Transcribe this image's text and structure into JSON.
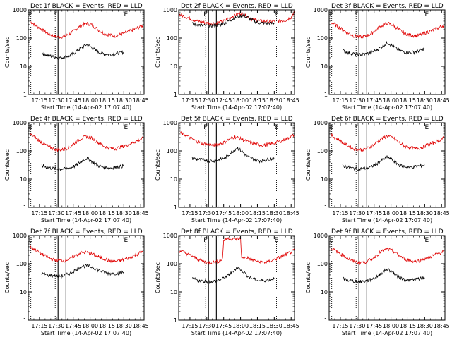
{
  "figure": {
    "ylabel": "Counts/sec",
    "xlabel": "Start Time (14-Apr-02 17:07:40)",
    "y_scale": "log",
    "ylim": [
      1,
      1000
    ],
    "y_ticks": [
      "1",
      "10",
      "100",
      "1000"
    ],
    "x_ticks": [
      "17:15",
      "17:30",
      "17:45",
      "18:00",
      "18:15",
      "18:30",
      "18:45"
    ],
    "x_ticks_min": [
      15,
      30,
      45,
      60,
      75,
      90,
      105
    ],
    "xlim_min": [
      5,
      108
    ],
    "legend_text": "BLACK = Events, RED = LLD",
    "colors": {
      "events": "#000000",
      "lld": "#e00000",
      "axes": "#000000"
    }
  },
  "chart_data": [
    {
      "type": "line",
      "title": "Det 1f BLACK = Events, RED = LLD",
      "detector": "Det 1f",
      "markers": [
        {
          "label": "E",
          "x": 7.3,
          "style": "dotted"
        },
        {
          "label": "F",
          "x": 29,
          "style": "dotted"
        },
        {
          "label": "",
          "x": 31.5,
          "style": "solid"
        },
        {
          "label": "",
          "x": 38.5,
          "style": "solid"
        },
        {
          "label": "E",
          "x": 92,
          "style": "dotted"
        }
      ],
      "series": [
        {
          "name": "RED = LLD",
          "color": "#e00000",
          "x": [
            7,
            12,
            17,
            22,
            27,
            32,
            37,
            42,
            47,
            52,
            57,
            62,
            67,
            72,
            77,
            82,
            87,
            92,
            97,
            102,
            107
          ],
          "y": [
            380,
            280,
            200,
            150,
            120,
            110,
            115,
            140,
            200,
            280,
            340,
            290,
            200,
            150,
            130,
            120,
            135,
            160,
            190,
            230,
            280
          ]
        },
        {
          "name": "BLACK = Events",
          "color": "#000000",
          "x": [
            17,
            22,
            27,
            32,
            37,
            42,
            47,
            52,
            57,
            62,
            67,
            72,
            77,
            82,
            87,
            90
          ],
          "y": [
            30,
            25,
            22,
            20,
            21,
            24,
            32,
            45,
            60,
            45,
            32,
            28,
            26,
            28,
            30,
            32
          ]
        }
      ]
    },
    {
      "type": "line",
      "title": "Det 2f BLACK = Events, RED = LLD",
      "detector": "Det 2f",
      "markers": [
        {
          "label": "F",
          "x": 29,
          "style": "dotted"
        },
        {
          "label": "",
          "x": 31.5,
          "style": "solid"
        },
        {
          "label": "",
          "x": 38.5,
          "style": "solid"
        },
        {
          "label": "E",
          "x": 92,
          "style": "dotted"
        }
      ],
      "series": [
        {
          "name": "RED = LLD",
          "color": "#e00000",
          "x": [
            5,
            10,
            15,
            20,
            25,
            30,
            35,
            40,
            45,
            50,
            55,
            60,
            65,
            70,
            75,
            80,
            85,
            90,
            95,
            100,
            105,
            108
          ],
          "y": [
            700,
            600,
            500,
            420,
            380,
            340,
            330,
            350,
            400,
            520,
            650,
            780,
            620,
            480,
            420,
            400,
            390,
            400,
            410,
            430,
            550,
            900
          ]
        },
        {
          "name": "BLACK = Events",
          "color": "#000000",
          "x": [
            17,
            22,
            27,
            32,
            37,
            42,
            47,
            52,
            57,
            62,
            67,
            72,
            77,
            82,
            87,
            90
          ],
          "y": [
            320,
            300,
            280,
            270,
            280,
            300,
            360,
            460,
            560,
            660,
            520,
            400,
            350,
            330,
            330,
            340
          ]
        }
      ]
    },
    {
      "type": "line",
      "title": "Det 3f BLACK = Events, RED = LLD",
      "detector": "Det 3f",
      "markers": [
        {
          "label": "E",
          "x": 7.3,
          "style": "dotted"
        },
        {
          "label": "F",
          "x": 29,
          "style": "dotted"
        },
        {
          "label": "",
          "x": 31.5,
          "style": "solid"
        },
        {
          "label": "",
          "x": 38.5,
          "style": "solid"
        },
        {
          "label": "E",
          "x": 92,
          "style": "dotted"
        }
      ],
      "series": [
        {
          "name": "RED = LLD",
          "color": "#e00000",
          "x": [
            7,
            12,
            17,
            22,
            27,
            32,
            37,
            42,
            47,
            52,
            57,
            62,
            67,
            72,
            77,
            82,
            87,
            92,
            97,
            102,
            107
          ],
          "y": [
            360,
            270,
            200,
            150,
            120,
            110,
            115,
            140,
            200,
            280,
            340,
            290,
            200,
            150,
            130,
            120,
            135,
            160,
            190,
            230,
            290
          ]
        },
        {
          "name": "BLACK = Events",
          "color": "#000000",
          "x": [
            17,
            22,
            27,
            32,
            37,
            42,
            47,
            52,
            57,
            62,
            67,
            72,
            77,
            82,
            87,
            90
          ],
          "y": [
            36,
            30,
            28,
            26,
            27,
            30,
            38,
            50,
            70,
            50,
            38,
            32,
            30,
            33,
            38,
            42
          ]
        }
      ]
    },
    {
      "type": "line",
      "title": "Det 4f BLACK = Events, RED = LLD",
      "detector": "Det 4f",
      "markers": [
        {
          "label": "E",
          "x": 7.3,
          "style": "dotted"
        },
        {
          "label": "F",
          "x": 29,
          "style": "dotted"
        },
        {
          "label": "",
          "x": 31.5,
          "style": "solid"
        },
        {
          "label": "",
          "x": 38.5,
          "style": "solid"
        },
        {
          "label": "E",
          "x": 92,
          "style": "dotted"
        }
      ],
      "series": [
        {
          "name": "RED = LLD",
          "color": "#e00000",
          "x": [
            7,
            12,
            17,
            22,
            27,
            32,
            37,
            42,
            47,
            52,
            57,
            62,
            67,
            72,
            77,
            82,
            87,
            92,
            97,
            102,
            107
          ],
          "y": [
            380,
            280,
            200,
            150,
            120,
            110,
            115,
            140,
            200,
            280,
            330,
            280,
            200,
            150,
            130,
            120,
            135,
            160,
            190,
            230,
            280
          ]
        },
        {
          "name": "BLACK = Events",
          "color": "#000000",
          "x": [
            17,
            22,
            27,
            32,
            37,
            42,
            47,
            52,
            57,
            62,
            67,
            72,
            77,
            82,
            87,
            90
          ],
          "y": [
            30,
            26,
            24,
            23,
            23,
            25,
            30,
            42,
            55,
            42,
            30,
            27,
            25,
            26,
            28,
            30
          ]
        }
      ]
    },
    {
      "type": "line",
      "title": "Det 5f BLACK = Events, RED = LLD",
      "detector": "Det 5f",
      "markers": [
        {
          "label": "F",
          "x": 29,
          "style": "dotted"
        },
        {
          "label": "",
          "x": 31.5,
          "style": "solid"
        },
        {
          "label": "",
          "x": 38.5,
          "style": "solid"
        },
        {
          "label": "E",
          "x": 92,
          "style": "dotted"
        }
      ],
      "series": [
        {
          "name": "RED = LLD",
          "color": "#e00000",
          "x": [
            5,
            10,
            15,
            20,
            25,
            30,
            35,
            40,
            45,
            50,
            55,
            60,
            65,
            70,
            75,
            80,
            85,
            90,
            95,
            100,
            105,
            108
          ],
          "y": [
            450,
            380,
            300,
            230,
            190,
            170,
            160,
            170,
            200,
            260,
            320,
            270,
            220,
            190,
            170,
            160,
            170,
            190,
            220,
            260,
            330,
            380
          ]
        },
        {
          "name": "BLACK = Events",
          "color": "#000000",
          "x": [
            17,
            22,
            27,
            32,
            37,
            42,
            47,
            52,
            57,
            62,
            67,
            72,
            77,
            82,
            87,
            90
          ],
          "y": [
            55,
            50,
            48,
            45,
            45,
            50,
            60,
            90,
            130,
            90,
            60,
            50,
            45,
            48,
            52,
            55
          ]
        }
      ]
    },
    {
      "type": "line",
      "title": "Det 6f BLACK = Events, RED = LLD",
      "detector": "Det 6f",
      "markers": [
        {
          "label": "E",
          "x": 7.3,
          "style": "dotted"
        },
        {
          "label": "F",
          "x": 29,
          "style": "dotted"
        },
        {
          "label": "",
          "x": 31.5,
          "style": "solid"
        },
        {
          "label": "",
          "x": 38.5,
          "style": "solid"
        },
        {
          "label": "E",
          "x": 92,
          "style": "dotted"
        }
      ],
      "series": [
        {
          "name": "RED = LLD",
          "color": "#e00000",
          "x": [
            7,
            12,
            17,
            22,
            27,
            32,
            37,
            42,
            47,
            52,
            57,
            62,
            67,
            72,
            77,
            82,
            87,
            92,
            97,
            102,
            107
          ],
          "y": [
            360,
            270,
            200,
            150,
            120,
            110,
            115,
            140,
            200,
            280,
            340,
            290,
            200,
            150,
            130,
            120,
            135,
            160,
            190,
            230,
            290
          ]
        },
        {
          "name": "BLACK = Events",
          "color": "#000000",
          "x": [
            17,
            22,
            27,
            32,
            37,
            42,
            47,
            52,
            57,
            62,
            67,
            72,
            77,
            82,
            87,
            90
          ],
          "y": [
            30,
            26,
            24,
            23,
            24,
            27,
            34,
            48,
            60,
            45,
            32,
            28,
            26,
            28,
            30,
            32
          ]
        }
      ]
    },
    {
      "type": "line",
      "title": "Det 7f BLACK = Events, RED = LLD",
      "detector": "Det 7f",
      "markers": [
        {
          "label": "E",
          "x": 7.3,
          "style": "dotted"
        },
        {
          "label": "F",
          "x": 29,
          "style": "dotted"
        },
        {
          "label": "",
          "x": 31.5,
          "style": "solid"
        },
        {
          "label": "",
          "x": 38.5,
          "style": "solid"
        },
        {
          "label": "E",
          "x": 92,
          "style": "dotted"
        }
      ],
      "series": [
        {
          "name": "RED = LLD",
          "color": "#e00000",
          "x": [
            7,
            12,
            17,
            22,
            27,
            32,
            37,
            42,
            47,
            52,
            57,
            62,
            67,
            72,
            77,
            82,
            87,
            92,
            97,
            102,
            107
          ],
          "y": [
            400,
            300,
            220,
            170,
            140,
            130,
            130,
            150,
            200,
            250,
            250,
            220,
            180,
            150,
            130,
            120,
            130,
            150,
            180,
            220,
            280
          ]
        },
        {
          "name": "BLACK = Events",
          "color": "#000000",
          "x": [
            17,
            22,
            27,
            32,
            37,
            42,
            47,
            52,
            57,
            62,
            67,
            72,
            77,
            82,
            87,
            90
          ],
          "y": [
            45,
            40,
            38,
            36,
            38,
            45,
            60,
            80,
            85,
            75,
            60,
            50,
            45,
            45,
            48,
            50
          ]
        }
      ]
    },
    {
      "type": "line",
      "title": "Det 8f BLACK = Events, RED = LLD",
      "detector": "Det 8f",
      "markers": [
        {
          "label": "F",
          "x": 29,
          "style": "dotted"
        },
        {
          "label": "",
          "x": 31.5,
          "style": "solid"
        },
        {
          "label": "",
          "x": 38.5,
          "style": "solid"
        },
        {
          "label": "E",
          "x": 92,
          "style": "dotted"
        }
      ],
      "series": [
        {
          "name": "RED = LLD",
          "color": "#e00000",
          "x": [
            5,
            10,
            15,
            20,
            25,
            30,
            35,
            40,
            44,
            45,
            50,
            55,
            60,
            61,
            65,
            70,
            75,
            80,
            85,
            90,
            95,
            100,
            105,
            108
          ],
          "y": [
            300,
            250,
            200,
            160,
            130,
            110,
            110,
            120,
            150,
            700,
            800,
            750,
            800,
            150,
            170,
            140,
            120,
            110,
            120,
            140,
            170,
            210,
            260,
            300
          ]
        },
        {
          "name": "BLACK = Events",
          "color": "#000000",
          "x": [
            17,
            22,
            27,
            32,
            37,
            42,
            47,
            52,
            57,
            62,
            67,
            72,
            77,
            82,
            87,
            90
          ],
          "y": [
            30,
            26,
            24,
            23,
            24,
            27,
            34,
            48,
            75,
            55,
            35,
            28,
            25,
            26,
            28,
            30
          ]
        }
      ]
    },
    {
      "type": "line",
      "title": "Det 9f BLACK = Events, RED = LLD",
      "detector": "Det 9f",
      "markers": [
        {
          "label": "E",
          "x": 7.3,
          "style": "dotted"
        },
        {
          "label": "F",
          "x": 29,
          "style": "dotted"
        },
        {
          "label": "",
          "x": 31.5,
          "style": "solid"
        },
        {
          "label": "",
          "x": 38.5,
          "style": "solid"
        },
        {
          "label": "E",
          "x": 92,
          "style": "dotted"
        }
      ],
      "series": [
        {
          "name": "RED = LLD",
          "color": "#e00000",
          "x": [
            7,
            12,
            17,
            22,
            27,
            32,
            37,
            42,
            47,
            52,
            57,
            62,
            67,
            72,
            77,
            82,
            87,
            92,
            97,
            102,
            107
          ],
          "y": [
            360,
            270,
            200,
            150,
            120,
            110,
            115,
            140,
            200,
            280,
            330,
            280,
            200,
            150,
            130,
            120,
            135,
            160,
            190,
            230,
            280
          ]
        },
        {
          "name": "BLACK = Events",
          "color": "#000000",
          "x": [
            17,
            22,
            27,
            32,
            37,
            42,
            47,
            52,
            57,
            62,
            67,
            72,
            77,
            82,
            87,
            90
          ],
          "y": [
            30,
            26,
            24,
            23,
            24,
            27,
            34,
            48,
            65,
            48,
            33,
            28,
            26,
            28,
            30,
            32
          ]
        }
      ]
    }
  ]
}
